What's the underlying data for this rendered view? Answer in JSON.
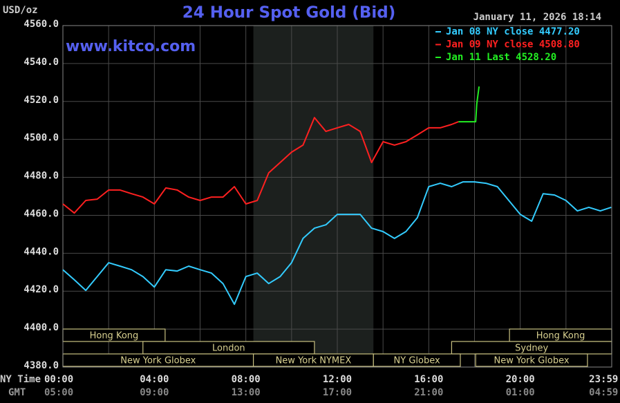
{
  "chart_data": {
    "type": "line",
    "title": "24 Hour Spot Gold (Bid)",
    "subtitle": "www.kitco.com",
    "timestamp": "January 11, 2026 18:14",
    "y_unit": "USD/oz",
    "x_row_labels": [
      "NY Time",
      "GMT"
    ],
    "xlim": [
      0,
      24
    ],
    "ylim": [
      4380,
      4560
    ],
    "yticks": [
      {
        "value": 4380,
        "label": "4380.0"
      },
      {
        "value": 4400,
        "label": "4400.0"
      },
      {
        "value": 4420,
        "label": "4420.0"
      },
      {
        "value": 4440,
        "label": "4440.0"
      },
      {
        "value": 4460,
        "label": "4460.0"
      },
      {
        "value": 4480,
        "label": "4480.0"
      },
      {
        "value": 4500,
        "label": "4500.0"
      },
      {
        "value": 4520,
        "label": "4520.0"
      },
      {
        "value": 4540,
        "label": "4540.0"
      },
      {
        "value": 4560,
        "label": "4560.0"
      }
    ],
    "xticks": [
      {
        "value": 0,
        "label": "00:00"
      },
      {
        "value": 4,
        "label": "04:00"
      },
      {
        "value": 8,
        "label": "08:00"
      },
      {
        "value": 12,
        "label": "12:00"
      },
      {
        "value": 16,
        "label": "16:00"
      },
      {
        "value": 20,
        "label": "20:00"
      },
      {
        "value": 23.98,
        "label": "23:59"
      }
    ],
    "x2ticklabels": [
      "05:00",
      "09:00",
      "13:00",
      "17:00",
      "21:00",
      "01:00",
      "04:59"
    ],
    "x_grid": [
      0,
      2,
      4,
      6,
      8,
      10,
      12,
      14,
      16,
      18,
      20,
      22,
      24
    ],
    "grid": true,
    "shaded_x": [
      8.33,
      13.58
    ],
    "sessions": [
      [
        {
          "label": "Hong Kong",
          "start": 0,
          "end": 4.47
        },
        {
          "label": "Hong Kong",
          "start": 19.53,
          "end": 24
        }
      ],
      [
        {
          "label": "London",
          "start": 3.5,
          "end": 11.0
        },
        {
          "label": "Sydney",
          "start": 17.0,
          "end": 24
        }
      ],
      [
        {
          "label": "New York Globex",
          "start": 0,
          "end": 8.33
        },
        {
          "label": "New York NYMEX",
          "start": 8.33,
          "end": 13.58
        },
        {
          "label": "NY Globex",
          "start": 13.58,
          "end": 17.38
        },
        {
          "label": "New York Globex",
          "start": 18.05,
          "end": 22.94
        }
      ]
    ],
    "series": [
      {
        "name": "Jan 08 NY close 4477.20",
        "color": "#33ccff",
        "x": [
          0,
          0.5,
          1,
          1.5,
          2,
          2.5,
          3,
          3.5,
          4,
          4.5,
          5,
          5.5,
          6,
          6.5,
          7,
          7.5,
          8,
          8.5,
          9,
          9.5,
          10,
          10.5,
          11,
          11.5,
          12,
          12.5,
          13,
          13.5,
          14,
          14.5,
          15,
          15.5,
          16,
          16.5,
          17,
          17.5,
          18,
          18.5,
          19,
          19.5,
          20,
          20.5,
          21,
          21.5,
          22,
          22.5,
          23,
          23.5,
          23.98
        ],
        "values": [
          4431.3,
          4426,
          4420.4,
          4427.7,
          4435,
          4433.2,
          4431.3,
          4427.7,
          4422.2,
          4431.3,
          4430.6,
          4433.2,
          4431.3,
          4429.5,
          4424,
          4413.1,
          4427.7,
          4429.5,
          4424,
          4427.7,
          4435,
          4447.8,
          4453.2,
          4455,
          4460.5,
          4460.5,
          4460.5,
          4453.2,
          4451.4,
          4447.8,
          4451.4,
          4458.7,
          4475.1,
          4476.9,
          4475.1,
          4477.6,
          4477.6,
          4476.9,
          4475.1,
          4467.8,
          4460.5,
          4456.9,
          4471.4,
          4470.7,
          4467.8,
          4462.3,
          4464.2,
          4462.3,
          4464.2
        ]
      },
      {
        "name": "Jan 09 NY close 4508.80",
        "color": "#ff2020",
        "x": [
          0,
          0.5,
          1,
          1.5,
          2,
          2.5,
          3,
          3.5,
          4,
          4.5,
          5,
          5.5,
          6,
          6.5,
          7,
          7.5,
          8,
          8.5,
          9,
          9.5,
          10,
          10.5,
          11,
          11.5,
          12,
          12.5,
          13,
          13.5,
          14,
          14.5,
          15,
          15.5,
          16,
          16.5,
          17,
          17.3
        ],
        "values": [
          4466,
          4461.2,
          4467.8,
          4468.5,
          4473.3,
          4473.3,
          4471.4,
          4469.6,
          4466,
          4474.4,
          4473.3,
          4469.6,
          4467.8,
          4469.6,
          4469.6,
          4475.1,
          4466,
          4467.8,
          4482.4,
          4487.8,
          4493.3,
          4497,
          4511.5,
          4504.2,
          4506.1,
          4507.9,
          4504.2,
          4487.8,
          4498.8,
          4497,
          4498.8,
          4502.4,
          4506.1,
          4506.1,
          4507.9,
          4509.3
        ]
      },
      {
        "name": "Jan 11 Last 4528.20",
        "color": "#22ee22",
        "x": [
          17.3,
          18.0,
          18.05,
          18.1,
          18.2
        ],
        "values": [
          4509.3,
          4509.3,
          4509.3,
          4518.8,
          4527.9
        ]
      }
    ]
  }
}
